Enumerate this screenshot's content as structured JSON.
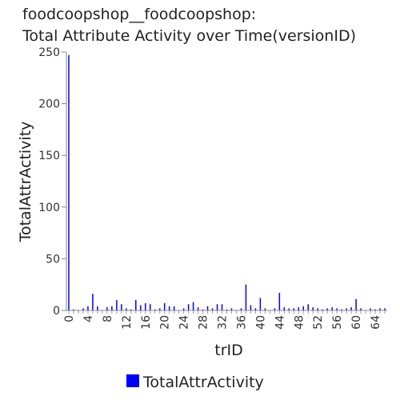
{
  "chart_data": {
    "type": "bar",
    "title": "foodcoopshop__foodcoopshop:",
    "subtitle": "Total Attribute Activity over Time(versionID)",
    "xlabel": "trID",
    "ylabel": "TotalAttrActivity",
    "ylim": [
      0,
      250
    ],
    "xlim": [
      -0.5,
      66.5
    ],
    "yticks": [
      0,
      50,
      100,
      150,
      200,
      250
    ],
    "xticks": [
      0,
      4,
      8,
      12,
      16,
      20,
      24,
      28,
      32,
      36,
      40,
      44,
      48,
      52,
      56,
      60,
      64
    ],
    "grid": false,
    "legend": "bottom-center",
    "bar_color": "#0000ff",
    "series": [
      {
        "name": "TotalAttrActivity",
        "x": [
          0,
          1,
          2,
          3,
          4,
          5,
          6,
          7,
          8,
          9,
          10,
          11,
          12,
          13,
          14,
          15,
          16,
          17,
          18,
          19,
          20,
          21,
          22,
          23,
          24,
          25,
          26,
          27,
          28,
          29,
          30,
          31,
          32,
          33,
          34,
          35,
          36,
          37,
          38,
          39,
          40,
          41,
          42,
          43,
          44,
          45,
          46,
          47,
          48,
          49,
          50,
          51,
          52,
          53,
          54,
          55,
          56,
          57,
          58,
          59,
          60,
          61,
          62,
          63,
          64,
          65,
          66
        ],
        "values": [
          247,
          1,
          0,
          2,
          4,
          16,
          4,
          0,
          3,
          4,
          10,
          6,
          2,
          1,
          10,
          5,
          7,
          6,
          1,
          2,
          7,
          4,
          4,
          0,
          2,
          6,
          8,
          3,
          1,
          4,
          2,
          6,
          6,
          1,
          2,
          0,
          2,
          25,
          5,
          2,
          12,
          2,
          0,
          2,
          17,
          3,
          2,
          2,
          3,
          4,
          6,
          3,
          2,
          1,
          2,
          3,
          2,
          1,
          2,
          3,
          11,
          2,
          0,
          2,
          1,
          2,
          2
        ]
      }
    ]
  }
}
